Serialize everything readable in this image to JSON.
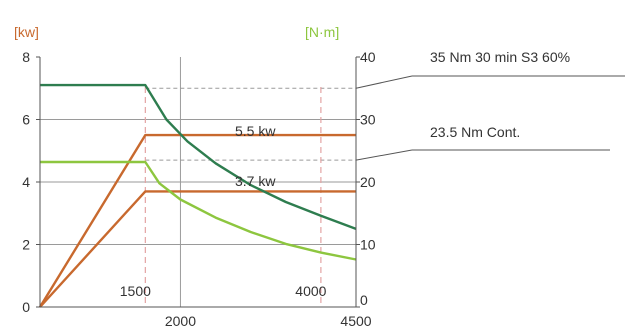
{
  "chart_data": {
    "type": "line",
    "title": "",
    "xlabel": "",
    "ylabel": "",
    "units": {
      "left": "[kw]",
      "right": "[N·m]"
    },
    "axes": {
      "x": {
        "range": [
          0,
          4500
        ],
        "tick_labels": [
          "2000",
          "4500"
        ]
      },
      "y_left": {
        "range": [
          0,
          8
        ],
        "tick_labels": [
          "0",
          "2",
          "4",
          "6",
          "8"
        ]
      },
      "y_right": {
        "range": [
          0,
          40
        ],
        "tick_labels": [
          "0",
          "10",
          "20",
          "30",
          "40"
        ]
      }
    },
    "grid": true,
    "markers": [
      {
        "label": "1500",
        "x": 1500
      },
      {
        "label": "4000",
        "x": 4000
      }
    ],
    "reference_lines": [
      {
        "axis": "right",
        "y": 35
      },
      {
        "axis": "right",
        "y": 23.5
      }
    ],
    "series": [
      {
        "axis": "left",
        "color": "#c8692e",
        "x": [
          0,
          1500,
          4500
        ],
        "y": [
          0,
          5.5,
          5.5
        ]
      },
      {
        "axis": "left",
        "color": "#c8692e",
        "x": [
          0,
          1500,
          4500
        ],
        "y": [
          0,
          3.7,
          3.7
        ]
      },
      {
        "axis": "right",
        "color": "#2e7d4f",
        "x": [
          0,
          1500,
          1800,
          2100,
          2500,
          3000,
          3500,
          4000,
          4500
        ],
        "y": [
          35.5,
          35.5,
          30,
          26.5,
          23,
          19.5,
          16.8,
          14.6,
          12.5
        ]
      },
      {
        "axis": "right",
        "color": "#8dc63f",
        "x": [
          0,
          1500,
          1700,
          2000,
          2500,
          3000,
          3500,
          4000,
          4500
        ],
        "y": [
          23.2,
          23.2,
          19.8,
          17.2,
          14.3,
          12,
          10.1,
          8.7,
          7.6
        ]
      }
    ],
    "annotations": [
      {
        "text": "35 Nm 30 min S3 60%",
        "target": "right_axis_35"
      },
      {
        "text": "23.5 Nm Cont.",
        "target": "right_axis_23.5"
      },
      {
        "text": "5.5 kw"
      },
      {
        "text": "3.7 kw"
      }
    ]
  }
}
